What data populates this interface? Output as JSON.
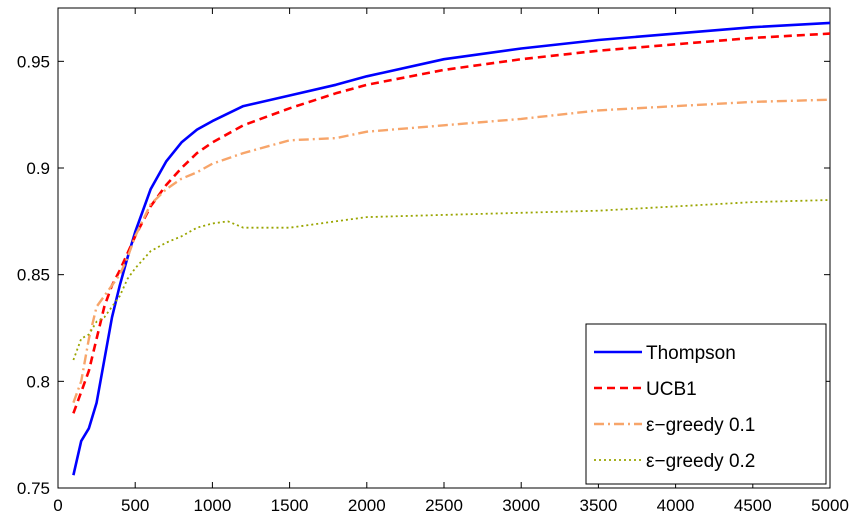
{
  "chart_data": {
    "type": "line",
    "title": "",
    "xlabel": "",
    "ylabel": "",
    "xlim": [
      0,
      5000
    ],
    "ylim": [
      0.75,
      0.975
    ],
    "x_ticks": [
      0,
      500,
      1000,
      1500,
      2000,
      2500,
      3000,
      3500,
      4000,
      4500,
      5000
    ],
    "x_tick_labels": [
      "0",
      "500",
      "1000",
      "1500",
      "2000",
      "2500",
      "3000",
      "3500",
      "4000",
      "4500",
      "5000"
    ],
    "y_ticks": [
      0.75,
      0.8,
      0.85,
      0.9,
      0.95
    ],
    "y_tick_labels": [
      "0.75",
      "0.8",
      "0.85",
      "0.9",
      "0.95"
    ],
    "grid": false,
    "legend_position": "bottom-right",
    "series": [
      {
        "name": "Thompson",
        "color": "#0000ff",
        "dash": "solid",
        "x": [
          100,
          150,
          200,
          250,
          300,
          350,
          400,
          450,
          500,
          600,
          700,
          800,
          900,
          1000,
          1200,
          1500,
          1800,
          2000,
          2500,
          3000,
          3500,
          4000,
          4500,
          5000
        ],
        "y": [
          0.756,
          0.772,
          0.778,
          0.79,
          0.81,
          0.83,
          0.845,
          0.858,
          0.87,
          0.89,
          0.903,
          0.912,
          0.918,
          0.922,
          0.929,
          0.934,
          0.939,
          0.943,
          0.951,
          0.956,
          0.96,
          0.963,
          0.966,
          0.968
        ]
      },
      {
        "name": "UCB1",
        "color": "#ff0000",
        "dash": "dashed",
        "x": [
          100,
          150,
          200,
          250,
          300,
          350,
          400,
          450,
          500,
          600,
          700,
          800,
          900,
          1000,
          1200,
          1500,
          1800,
          2000,
          2500,
          3000,
          3500,
          4000,
          4500,
          5000
        ],
        "y": [
          0.785,
          0.795,
          0.805,
          0.82,
          0.835,
          0.845,
          0.852,
          0.86,
          0.868,
          0.882,
          0.892,
          0.9,
          0.907,
          0.912,
          0.92,
          0.928,
          0.935,
          0.939,
          0.946,
          0.951,
          0.955,
          0.958,
          0.961,
          0.963
        ]
      },
      {
        "name": "ε−greedy 0.1",
        "color": "#f7a56a",
        "dash": "dashdot",
        "x": [
          100,
          150,
          200,
          250,
          300,
          350,
          400,
          450,
          500,
          600,
          700,
          800,
          900,
          1000,
          1200,
          1500,
          1800,
          2000,
          2500,
          3000,
          3500,
          4000,
          4500,
          5000
        ],
        "y": [
          0.79,
          0.8,
          0.82,
          0.835,
          0.84,
          0.845,
          0.85,
          0.858,
          0.868,
          0.883,
          0.89,
          0.895,
          0.898,
          0.902,
          0.907,
          0.913,
          0.914,
          0.917,
          0.92,
          0.923,
          0.927,
          0.929,
          0.931,
          0.932
        ]
      },
      {
        "name": "ε−greedy 0.2",
        "color": "#9aa500",
        "dash": "dotted",
        "x": [
          100,
          150,
          200,
          250,
          300,
          350,
          400,
          450,
          500,
          600,
          700,
          800,
          900,
          1000,
          1100,
          1200,
          1500,
          1800,
          2000,
          2500,
          3000,
          3500,
          4000,
          4500,
          5000
        ],
        "y": [
          0.81,
          0.82,
          0.822,
          0.828,
          0.83,
          0.835,
          0.84,
          0.848,
          0.853,
          0.861,
          0.865,
          0.868,
          0.872,
          0.874,
          0.875,
          0.872,
          0.872,
          0.875,
          0.877,
          0.878,
          0.879,
          0.88,
          0.882,
          0.884,
          0.885
        ]
      }
    ]
  }
}
